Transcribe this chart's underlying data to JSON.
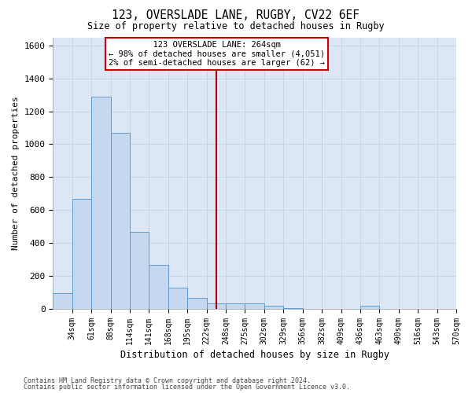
{
  "title1": "123, OVERSLADE LANE, RUGBY, CV22 6EF",
  "title2": "Size of property relative to detached houses in Rugby",
  "xlabel": "Distribution of detached houses by size in Rugby",
  "ylabel": "Number of detached properties",
  "bin_labels": [
    "34sqm",
    "61sqm",
    "88sqm",
    "114sqm",
    "141sqm",
    "168sqm",
    "195sqm",
    "222sqm",
    "248sqm",
    "275sqm",
    "302sqm",
    "329sqm",
    "356sqm",
    "382sqm",
    "409sqm",
    "436sqm",
    "463sqm",
    "490sqm",
    "516sqm",
    "543sqm",
    "570sqm"
  ],
  "bar_values": [
    95,
    668,
    1290,
    1068,
    468,
    265,
    128,
    65,
    30,
    33,
    33,
    15,
    3,
    0,
    0,
    0,
    16,
    0,
    0,
    0,
    0
  ],
  "bar_color": "#c5d8f0",
  "bar_edge_color": "#5b9bd5",
  "ax_bg_color": "#dce6f5",
  "property_size": 264,
  "pct_smaller": 98,
  "count_smaller": 4051,
  "pct_larger_semi": 2,
  "count_larger_semi": 62,
  "vline_color": "#aa0000",
  "annotation_box_color": "#cc0000",
  "ylim": [
    0,
    1650
  ],
  "yticks": [
    0,
    200,
    400,
    600,
    800,
    1000,
    1200,
    1400,
    1600
  ],
  "footer1": "Contains HM Land Registry data © Crown copyright and database right 2024.",
  "footer2": "Contains public sector information licensed under the Open Government Licence v3.0.",
  "bg_color": "#ffffff",
  "grid_color": "#c8d4e8"
}
